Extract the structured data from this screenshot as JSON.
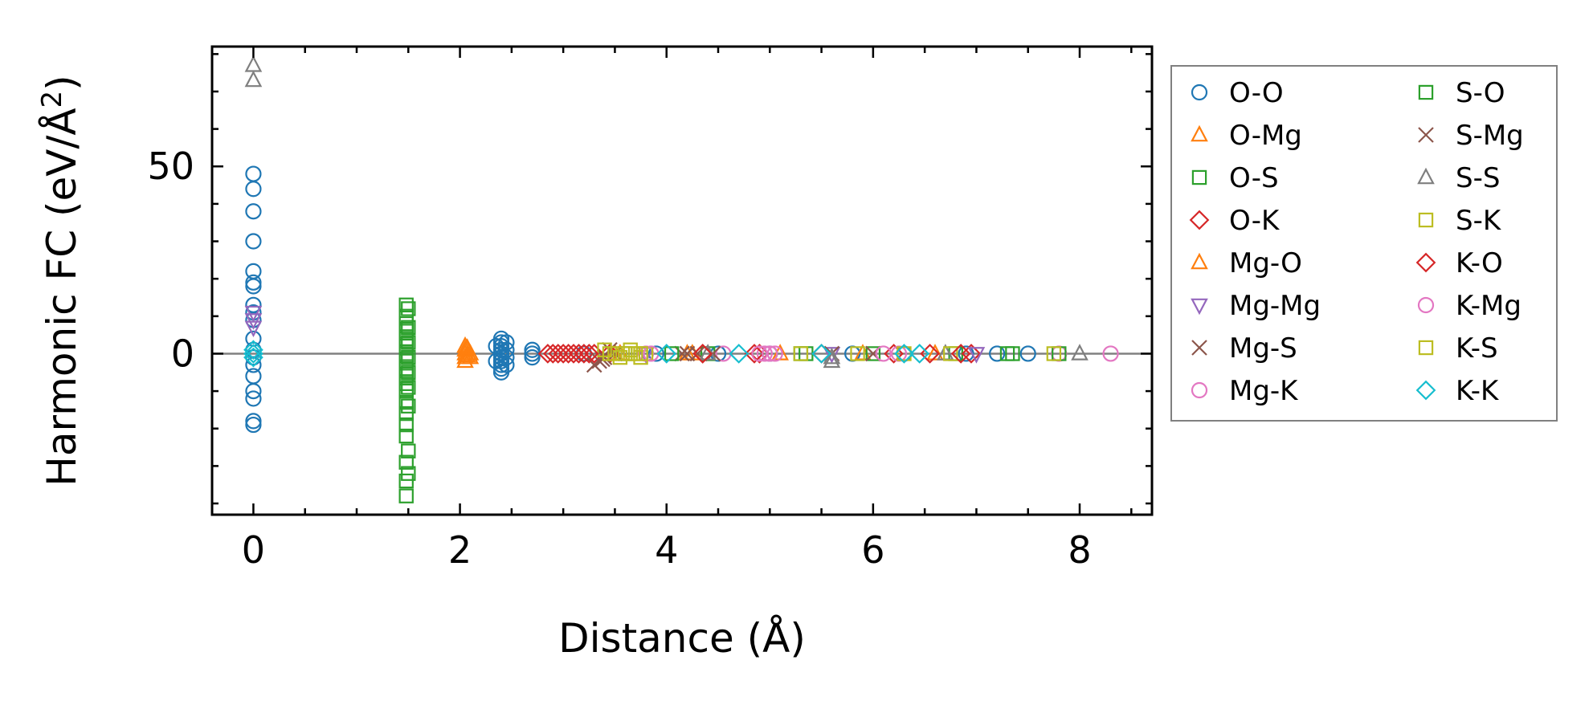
{
  "chart_data": {
    "type": "scatter",
    "xlabel": "Distance (Å)",
    "ylabel_main": "Harmonic FC (eV/Å",
    "ylabel_sup": "2",
    "ylabel_close": ")",
    "xlim": [
      -0.4,
      8.7
    ],
    "ylim": [
      -43,
      82
    ],
    "xticks": [
      0,
      2,
      4,
      6,
      8
    ],
    "xtick_labels": [
      "0",
      "2",
      "4",
      "6",
      "8"
    ],
    "yticks": [
      0,
      50
    ],
    "ytick_labels": [
      "0",
      "50"
    ],
    "reference_line_y": 0,
    "legend_position": "right",
    "legend_columns": 2,
    "series": [
      {
        "name": "O-O",
        "marker": "circle",
        "color": "#1f77b4",
        "points": [
          [
            0,
            48
          ],
          [
            0,
            44
          ],
          [
            0,
            38
          ],
          [
            0,
            30
          ],
          [
            0,
            22
          ],
          [
            0,
            19
          ],
          [
            0,
            18
          ],
          [
            0,
            13
          ],
          [
            0,
            11
          ],
          [
            0,
            9
          ],
          [
            0,
            4
          ],
          [
            0,
            1
          ],
          [
            0,
            -1
          ],
          [
            0,
            -3
          ],
          [
            0,
            -6
          ],
          [
            0,
            -10
          ],
          [
            0,
            -12
          ],
          [
            0,
            -18
          ],
          [
            0,
            -19
          ],
          [
            2.4,
            4
          ],
          [
            2.4,
            3
          ],
          [
            2.4,
            2
          ],
          [
            2.4,
            1
          ],
          [
            2.4,
            0
          ],
          [
            2.4,
            -1
          ],
          [
            2.4,
            -2
          ],
          [
            2.4,
            -3
          ],
          [
            2.4,
            -4
          ],
          [
            2.4,
            -5
          ],
          [
            2.45,
            3
          ],
          [
            2.45,
            1
          ],
          [
            2.45,
            -1
          ],
          [
            2.45,
            -3
          ],
          [
            2.35,
            2
          ],
          [
            2.35,
            -2
          ],
          [
            2.7,
            1
          ],
          [
            2.7,
            0
          ],
          [
            2.7,
            -1
          ],
          [
            3.2,
            0
          ],
          [
            3.9,
            0
          ],
          [
            4.5,
            0
          ],
          [
            5.0,
            0
          ],
          [
            5.8,
            0
          ],
          [
            6.3,
            0
          ],
          [
            6.9,
            0
          ],
          [
            7.2,
            0
          ],
          [
            7.5,
            0
          ]
        ]
      },
      {
        "name": "O-Mg",
        "marker": "triangle-up",
        "color": "#ff7f0e",
        "points": [
          [
            2.05,
            2
          ],
          [
            2.05,
            1
          ],
          [
            2.05,
            0
          ],
          [
            2.05,
            -1
          ],
          [
            2.05,
            -2
          ],
          [
            2.1,
            0
          ],
          [
            2.1,
            -1
          ],
          [
            3.5,
            0
          ],
          [
            4.2,
            0
          ],
          [
            5.1,
            0
          ],
          [
            5.9,
            0
          ],
          [
            6.6,
            0
          ]
        ]
      },
      {
        "name": "O-S",
        "marker": "square",
        "color": "#2ca02c",
        "points": [
          [
            1.48,
            13
          ],
          [
            1.48,
            10
          ],
          [
            1.48,
            8
          ],
          [
            1.48,
            6
          ],
          [
            1.48,
            4
          ],
          [
            1.48,
            2
          ],
          [
            1.48,
            0
          ],
          [
            1.48,
            -2
          ],
          [
            1.48,
            -4
          ],
          [
            1.48,
            -6
          ],
          [
            1.48,
            -8
          ],
          [
            1.48,
            -10
          ],
          [
            1.48,
            -13
          ],
          [
            1.48,
            -16
          ],
          [
            1.48,
            -19
          ],
          [
            1.48,
            -22
          ],
          [
            1.48,
            -29
          ],
          [
            1.48,
            -34
          ],
          [
            1.48,
            -38
          ],
          [
            3.6,
            0
          ],
          [
            4.4,
            0
          ],
          [
            5.3,
            0
          ],
          [
            6.0,
            0
          ],
          [
            6.8,
            0
          ],
          [
            7.3,
            0
          ]
        ]
      },
      {
        "name": "O-K",
        "marker": "diamond",
        "color": "#d62728",
        "points": [
          [
            2.85,
            0
          ],
          [
            2.95,
            0
          ],
          [
            3.05,
            0
          ],
          [
            3.1,
            0
          ],
          [
            3.2,
            0
          ],
          [
            3.3,
            0
          ],
          [
            3.45,
            0
          ],
          [
            4.35,
            0
          ],
          [
            4.9,
            0
          ],
          [
            5.5,
            0
          ],
          [
            6.2,
            0
          ],
          [
            6.95,
            0
          ]
        ]
      },
      {
        "name": "Mg-O",
        "marker": "triangle-up",
        "color": "#ff7f0e",
        "points": [
          [
            2.07,
            1.5
          ],
          [
            2.07,
            -0.5
          ],
          [
            3.55,
            0
          ],
          [
            4.25,
            0
          ]
        ]
      },
      {
        "name": "Mg-Mg",
        "marker": "triangle-down",
        "color": "#9467bd",
        "points": [
          [
            0,
            11
          ],
          [
            0,
            9
          ],
          [
            0,
            7
          ],
          [
            3.8,
            0
          ],
          [
            5.6,
            0
          ],
          [
            7.0,
            0
          ]
        ]
      },
      {
        "name": "Mg-S",
        "marker": "x",
        "color": "#8c564b",
        "points": [
          [
            3.3,
            -3
          ],
          [
            3.35,
            -2
          ],
          [
            3.4,
            -1
          ],
          [
            3.45,
            1
          ],
          [
            3.5,
            0
          ],
          [
            4.15,
            0
          ],
          [
            4.3,
            0
          ],
          [
            5.6,
            0
          ],
          [
            6.0,
            0
          ]
        ]
      },
      {
        "name": "Mg-K",
        "marker": "circle",
        "color": "#e377c2",
        "points": [
          [
            3.8,
            0
          ],
          [
            4.55,
            0
          ],
          [
            4.95,
            0
          ],
          [
            5.05,
            0
          ],
          [
            6.1,
            0
          ],
          [
            7.8,
            0
          ],
          [
            8.3,
            0
          ]
        ]
      },
      {
        "name": "S-O",
        "marker": "square",
        "color": "#2ca02c",
        "points": [
          [
            1.5,
            12
          ],
          [
            1.5,
            7
          ],
          [
            1.5,
            3
          ],
          [
            1.5,
            -1
          ],
          [
            1.5,
            -5
          ],
          [
            1.5,
            -9
          ],
          [
            1.5,
            -14
          ],
          [
            1.5,
            -26
          ],
          [
            1.5,
            -32
          ],
          [
            4.05,
            0
          ],
          [
            5.35,
            0
          ],
          [
            7.35,
            0
          ],
          [
            7.8,
            0
          ]
        ]
      },
      {
        "name": "S-Mg",
        "marker": "x",
        "color": "#8c564b",
        "points": [
          [
            3.38,
            -1.5
          ],
          [
            4.2,
            0
          ],
          [
            4.45,
            0
          ]
        ]
      },
      {
        "name": "S-S",
        "marker": "triangle-up",
        "color": "#7f7f7f",
        "points": [
          [
            0,
            77
          ],
          [
            0,
            73
          ],
          [
            4.4,
            0
          ],
          [
            5.6,
            -1
          ],
          [
            5.6,
            -2
          ],
          [
            6.7,
            0
          ],
          [
            8.0,
            0
          ]
        ]
      },
      {
        "name": "S-K",
        "marker": "square",
        "color": "#bcbd22",
        "points": [
          [
            3.4,
            1
          ],
          [
            3.5,
            0
          ],
          [
            3.55,
            -1
          ],
          [
            3.6,
            0
          ],
          [
            3.65,
            1
          ],
          [
            3.7,
            0
          ],
          [
            3.75,
            -1
          ],
          [
            3.8,
            0
          ],
          [
            5.85,
            0
          ],
          [
            6.75,
            0
          ]
        ]
      },
      {
        "name": "K-O",
        "marker": "diamond",
        "color": "#d62728",
        "points": [
          [
            2.9,
            0
          ],
          [
            3.0,
            0
          ],
          [
            3.15,
            0
          ],
          [
            3.25,
            0
          ],
          [
            4.35,
            0
          ],
          [
            4.85,
            0
          ],
          [
            6.55,
            0
          ],
          [
            6.85,
            0
          ]
        ]
      },
      {
        "name": "K-Mg",
        "marker": "circle",
        "color": "#e377c2",
        "points": [
          [
            3.85,
            0
          ],
          [
            4.9,
            0
          ],
          [
            5.0,
            0
          ],
          [
            6.25,
            0
          ]
        ]
      },
      {
        "name": "K-S",
        "marker": "square",
        "color": "#bcbd22",
        "points": [
          [
            3.45,
            0
          ],
          [
            3.65,
            0
          ],
          [
            3.75,
            0
          ],
          [
            5.3,
            0
          ],
          [
            6.3,
            0
          ],
          [
            7.75,
            0
          ]
        ]
      },
      {
        "name": "K-K",
        "marker": "diamond",
        "color": "#17becf",
        "points": [
          [
            0,
            1
          ],
          [
            0,
            0
          ],
          [
            0,
            -1
          ],
          [
            4.0,
            0
          ],
          [
            4.7,
            0
          ],
          [
            5.5,
            0
          ],
          [
            6.3,
            0
          ],
          [
            6.45,
            0
          ]
        ]
      }
    ]
  }
}
